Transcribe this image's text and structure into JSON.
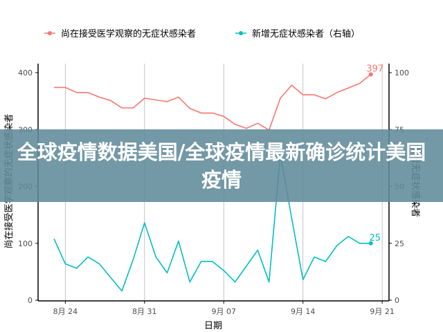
{
  "chart_data": {
    "type": "line",
    "title": "",
    "xlabel": "日期",
    "ylabel": "尚在接受医学观察的无症状感染者",
    "y2label": "新增无症状感染者",
    "x": [
      "8-23",
      "8-24",
      "8-25",
      "8-26",
      "8-27",
      "8-28",
      "8-29",
      "8-30",
      "8-31",
      "9-01",
      "9-02",
      "9-03",
      "9-04",
      "9-05",
      "9-06",
      "9-07",
      "9-08",
      "9-09",
      "9-10",
      "9-11",
      "9-12",
      "9-13",
      "9-14",
      "9-15",
      "9-16",
      "9-17",
      "9-18",
      "9-19",
      "9-20"
    ],
    "xticks": [
      "8月 24",
      "8月 31",
      "9月 07",
      "9月 14",
      "9月 21"
    ],
    "yticks": [
      "0",
      "100",
      "200",
      "300",
      "400"
    ],
    "y2ticks": [
      "0",
      "25",
      "50",
      "75",
      "100"
    ],
    "ylim": [
      0,
      400
    ],
    "y2lim": [
      0,
      100
    ],
    "legend_position": "top",
    "series": [
      {
        "name": "尚在接受医学观察的无症状感染者",
        "axis": "left",
        "color": "#F8766D",
        "values": [
          374,
          374,
          365,
          365,
          357,
          351,
          338,
          338,
          355,
          352,
          349,
          357,
          337,
          329,
          329,
          323,
          309,
          302,
          311,
          299,
          355,
          378,
          361,
          361,
          354,
          365,
          373,
          381,
          397
        ],
        "end_label": "397"
      },
      {
        "name": "新增无症状感染者（右轴）",
        "axis": "right",
        "color": "#00BFC4",
        "values": [
          27,
          16,
          14,
          19,
          16,
          10,
          4,
          18,
          34,
          19,
          12,
          26,
          8,
          17,
          17,
          13,
          8,
          15,
          22,
          8,
          64,
          36,
          9,
          19,
          17,
          24,
          28,
          25,
          25
        ],
        "end_label": "25"
      }
    ]
  },
  "banner": {
    "text": "全球疫情数据美国/全球疫情最新确诊统计美国疫情"
  }
}
